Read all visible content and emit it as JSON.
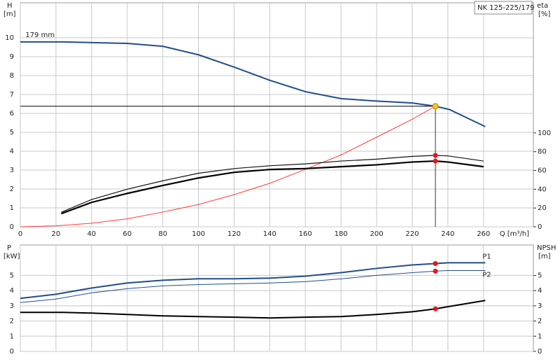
{
  "chart_data": [
    {
      "type": "line",
      "title": "NK 125-225/179",
      "x_label": "Q [m³/h]",
      "y_label": "H",
      "y_unit": "[m]",
      "y2_label": "eta",
      "y2_unit": "[%]",
      "xlim": [
        0,
        288
      ],
      "xticks": [
        0,
        20,
        40,
        60,
        80,
        100,
        120,
        140,
        160,
        180,
        200,
        220,
        240,
        260
      ],
      "ylim": [
        0,
        11.85
      ],
      "yticks": [
        0,
        1,
        2,
        3,
        4,
        5,
        6,
        7,
        8,
        9,
        10
      ],
      "y2lim": [
        0,
        238.5
      ],
      "y2ticks": [
        0,
        20,
        40,
        60,
        80,
        100
      ],
      "grid": true,
      "duty_point": {
        "x": 233,
        "y": 6.38,
        "color": "#f5c518"
      },
      "series": [
        {
          "name": "179 mm",
          "color": "#1f4e8c",
          "width": 2,
          "x": [
            0,
            24,
            60,
            80,
            100,
            120,
            140,
            160,
            180,
            200,
            220,
            233,
            241,
            261
          ],
          "values": [
            9.78,
            9.78,
            9.7,
            9.55,
            9.1,
            8.45,
            7.75,
            7.15,
            6.78,
            6.65,
            6.55,
            6.38,
            6.2,
            5.3
          ]
        },
        {
          "color": "#ff3b3b",
          "width": 1,
          "x": [
            0,
            20,
            40,
            60,
            80,
            100,
            120,
            140,
            160,
            180,
            200,
            220,
            233
          ],
          "values": [
            0,
            0.05,
            0.19,
            0.42,
            0.78,
            1.18,
            1.7,
            2.3,
            3.04,
            3.8,
            4.74,
            5.69,
            6.38
          ]
        },
        {
          "color": "#111111",
          "width": 1.2,
          "axis": "y2",
          "x": [
            23,
            40,
            60,
            80,
            100,
            120,
            140,
            160,
            180,
            200,
            220,
            233,
            240,
            260
          ],
          "values": [
            15.5,
            29,
            40,
            49,
            57,
            62,
            65,
            67,
            70,
            72,
            75,
            76,
            75.5,
            70
          ],
          "marker": {
            "x": 233,
            "y": 76,
            "color": "#e8151b"
          }
        },
        {
          "color": "#000000",
          "width": 2.2,
          "axis": "y2",
          "x": [
            23,
            40,
            60,
            80,
            100,
            120,
            140,
            160,
            180,
            200,
            220,
            233,
            240,
            260
          ],
          "values": [
            14,
            26,
            35.5,
            44,
            52,
            58,
            61,
            62,
            64,
            66,
            69,
            70,
            69,
            64
          ],
          "marker": {
            "x": 233,
            "y": 70,
            "color": "#e8151b"
          }
        }
      ]
    },
    {
      "type": "line",
      "y_label": "P",
      "y_unit": "[kW]",
      "y2_label": "NPSH",
      "y2_unit": "[m]",
      "xlim": [
        0,
        288
      ],
      "xticks": [
        0,
        20,
        40,
        60,
        80,
        100,
        120,
        140,
        160,
        180,
        200,
        220,
        240,
        260
      ],
      "ylim": [
        0,
        7
      ],
      "yticks": [
        0,
        1,
        2,
        3,
        4,
        5
      ],
      "y2lim": [
        0,
        7
      ],
      "y2ticks": [
        0,
        1,
        2,
        3,
        4,
        5
      ],
      "grid": true,
      "series": [
        {
          "name": "P1",
          "color": "#1f4e8c",
          "width": 2,
          "x": [
            0,
            20,
            40,
            60,
            80,
            100,
            120,
            140,
            160,
            180,
            200,
            220,
            233,
            240,
            261
          ],
          "values": [
            3.49,
            3.76,
            4.17,
            4.5,
            4.68,
            4.78,
            4.78,
            4.82,
            4.95,
            5.18,
            5.46,
            5.69,
            5.78,
            5.83,
            5.83
          ],
          "marker": {
            "x": 233,
            "y": 5.78,
            "color": "#e8151b"
          }
        },
        {
          "name": "P2",
          "color": "#1f4e8c",
          "width": 1,
          "x": [
            0,
            20,
            40,
            60,
            80,
            100,
            140,
            160,
            180,
            200,
            220,
            233,
            240,
            261
          ],
          "values": [
            3.21,
            3.44,
            3.85,
            4.13,
            4.31,
            4.4,
            4.5,
            4.59,
            4.77,
            5.0,
            5.18,
            5.28,
            5.32,
            5.32
          ],
          "marker": {
            "x": 233,
            "y": 5.28,
            "color": "#e8151b"
          }
        },
        {
          "color": "#000000",
          "width": 2,
          "axis": "y2",
          "x": [
            0,
            24,
            40,
            60,
            80,
            100,
            120,
            140,
            160,
            180,
            200,
            220,
            233,
            240,
            261
          ],
          "values": [
            2.57,
            2.57,
            2.52,
            2.43,
            2.34,
            2.29,
            2.25,
            2.2,
            2.25,
            2.29,
            2.43,
            2.61,
            2.8,
            2.94,
            3.35
          ],
          "marker": {
            "x": 233,
            "y": 2.8,
            "color": "#e8151b"
          }
        }
      ]
    }
  ]
}
